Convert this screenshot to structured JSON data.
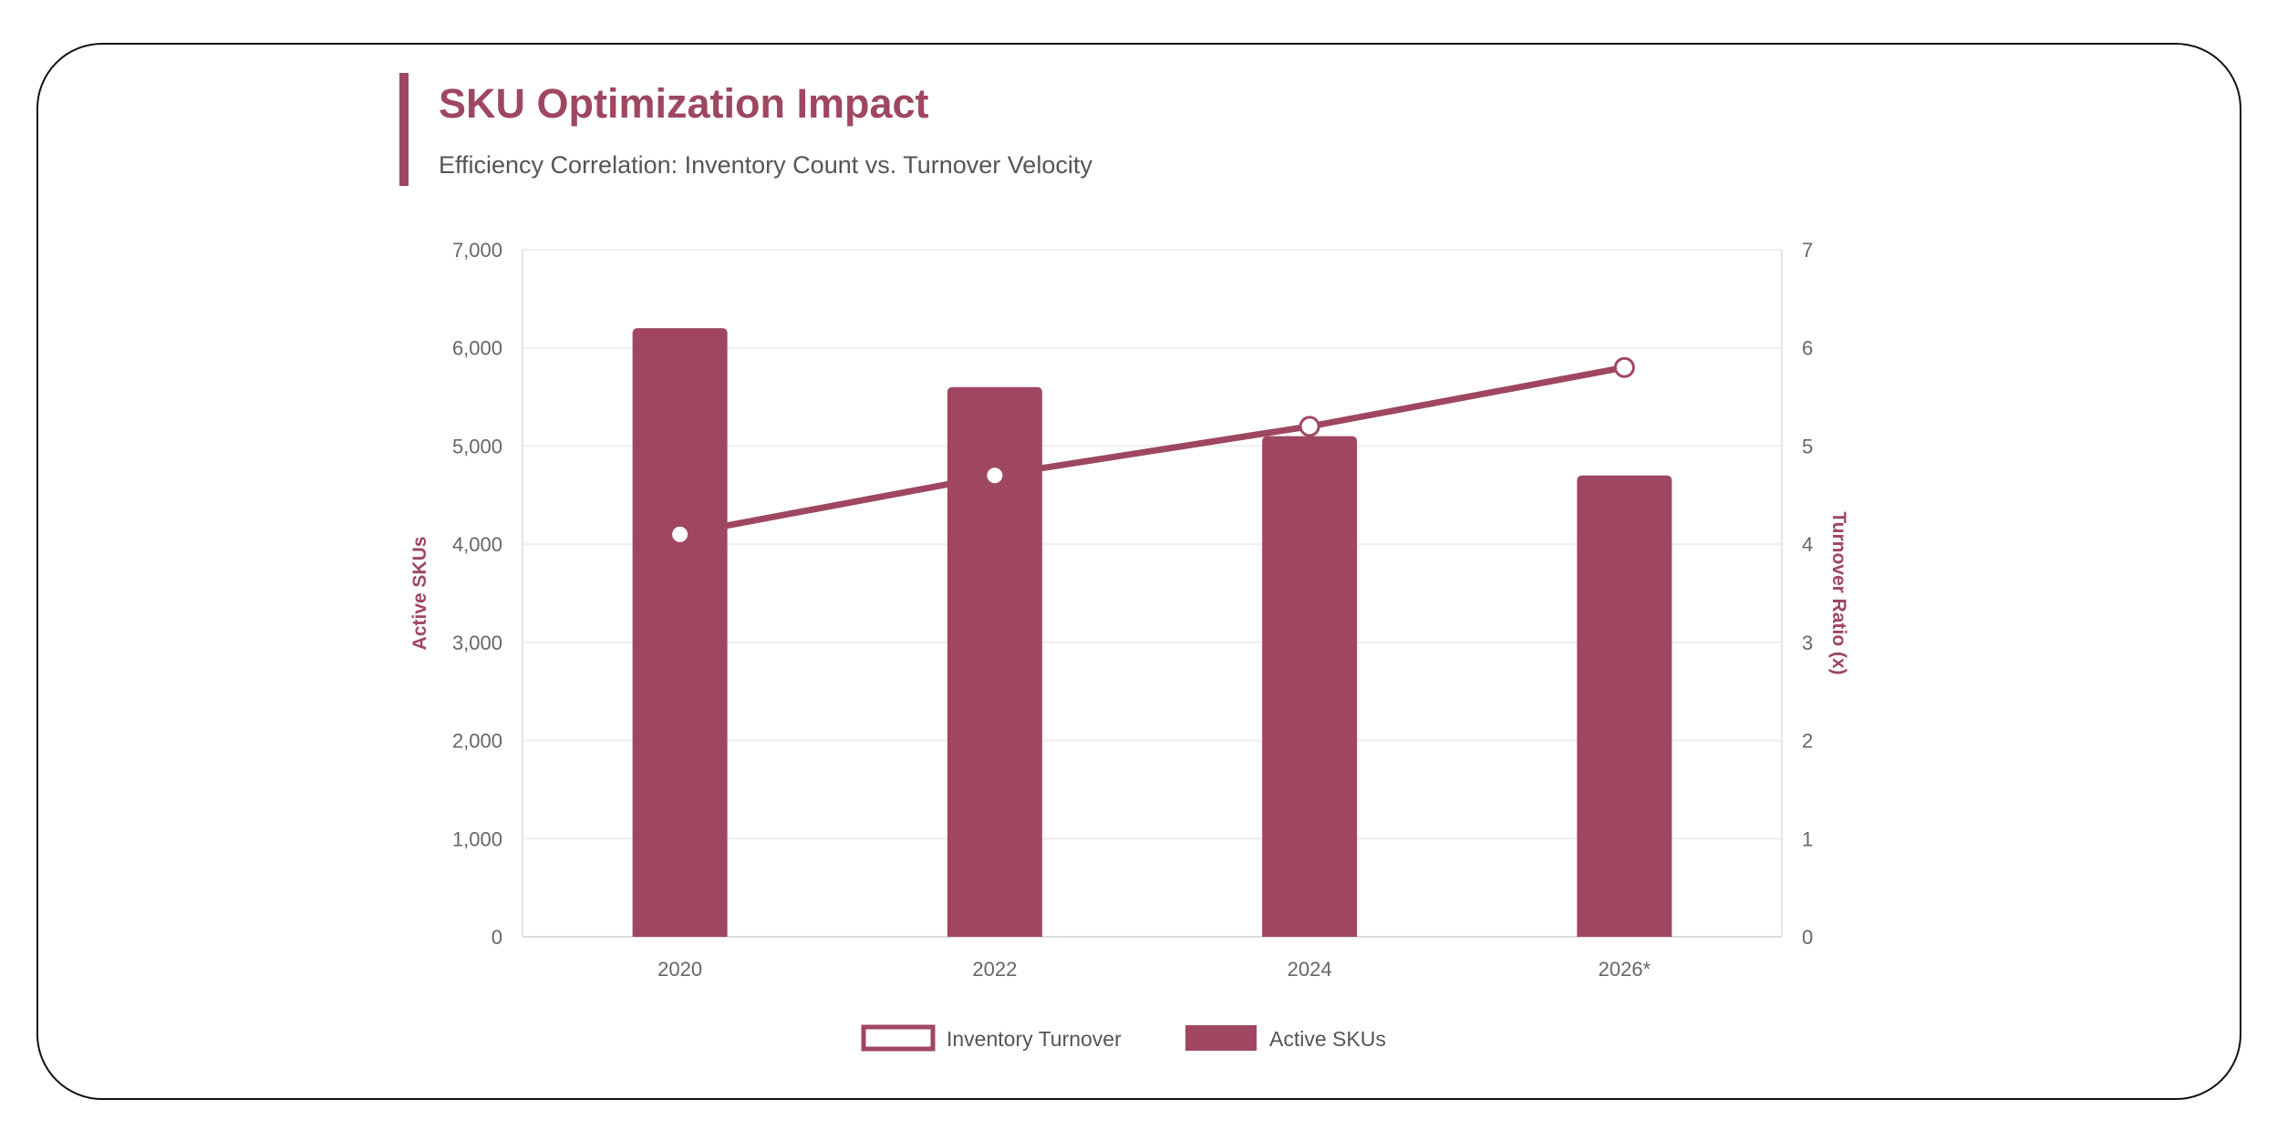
{
  "header": {
    "title": "SKU Optimization Impact",
    "subtitle": "Efficiency Correlation: Inventory Count vs. Turnover Velocity"
  },
  "colors": {
    "accent": "#9f4760",
    "grid": "#eeeeee",
    "tick": "#666666"
  },
  "chart_data": {
    "type": "bar+line",
    "categories": [
      "2020",
      "2022",
      "2024",
      "2026*"
    ],
    "series": [
      {
        "name": "Inventory Turnover",
        "type": "line",
        "axis": "right",
        "values": [
          4.1,
          4.7,
          5.2,
          5.8
        ]
      },
      {
        "name": "Active SKUs",
        "type": "bar",
        "axis": "left",
        "values": [
          6200,
          5600,
          5100,
          4700
        ]
      }
    ],
    "y_left": {
      "label": "Active SKUs",
      "range": [
        0,
        7000
      ],
      "ticks": [
        "0",
        "1,000",
        "2,000",
        "3,000",
        "4,000",
        "5,000",
        "6,000",
        "7,000"
      ]
    },
    "y_right": {
      "label": "Turnover Ratio (x)",
      "range": [
        0,
        7
      ],
      "ticks": [
        "0",
        "1",
        "2",
        "3",
        "4",
        "5",
        "6",
        "7"
      ]
    },
    "grid": true,
    "legend_position": "bottom"
  }
}
